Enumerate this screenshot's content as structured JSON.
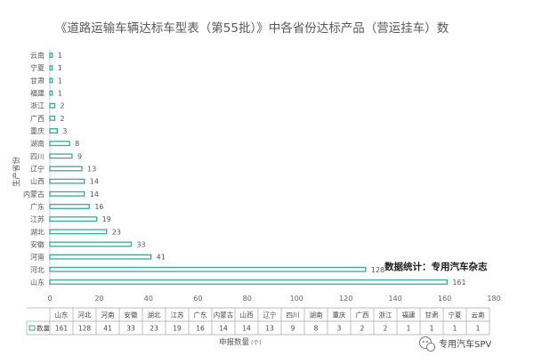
{
  "chart_data": {
    "type": "bar",
    "orientation": "horizontal",
    "title": "《道路运输车辆达标车型表（第55批）》中各省份达标产品（营运挂车）数",
    "xlabel": "申报数量",
    "xlabel_unit": "(个)",
    "ylabel": "生产省份",
    "xlim": [
      0,
      180
    ],
    "x_ticks": [
      0,
      20,
      40,
      60,
      80,
      100,
      120,
      140,
      160,
      180
    ],
    "grid": false,
    "categories": [
      "山东",
      "河北",
      "河南",
      "安徽",
      "湖北",
      "江苏",
      "广东",
      "内蒙古",
      "山西",
      "辽宁",
      "四川",
      "湖南",
      "重庆",
      "广西",
      "浙江",
      "福建",
      "甘肃",
      "宁夏",
      "云南"
    ],
    "series": [
      {
        "name": "数量",
        "values": [
          161,
          128,
          41,
          33,
          23,
          19,
          16,
          14,
          14,
          13,
          9,
          8,
          3,
          2,
          2,
          1,
          1,
          1,
          1
        ]
      }
    ],
    "data_table": true,
    "bar_color": "#3aa89a"
  },
  "annotations": {
    "note": "数据统计：专用汽车杂志"
  },
  "watermark": {
    "icon": "wechat-icon",
    "text": "专用汽车SPV"
  }
}
